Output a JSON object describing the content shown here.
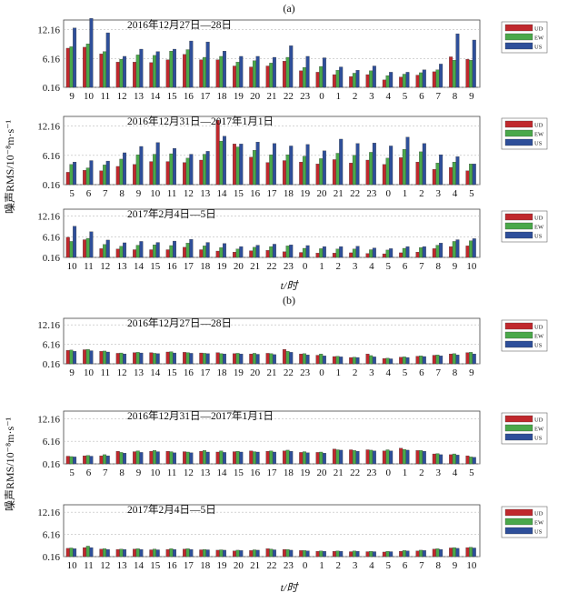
{
  "page": {
    "panel_labels": [
      "(a)",
      "(b)"
    ],
    "ylabel": "噪声RMS/10⁻⁸m·s⁻¹",
    "xlabel": "t/时",
    "legend": [
      "UD",
      "EW",
      "US"
    ],
    "colors": {
      "UD": "#c0282d",
      "EW": "#4aa84a",
      "US": "#2e4f9a"
    }
  },
  "chart_data": [
    {
      "type": "bar",
      "group": "a",
      "title": "2016年12月27日—28日",
      "categories": [
        "9",
        "10",
        "11",
        "12",
        "13",
        "14",
        "15",
        "16",
        "17",
        "18",
        "19",
        "20",
        "21",
        "22",
        "23",
        "0",
        "1",
        "2",
        "3",
        "4",
        "5",
        "6",
        "7",
        "8",
        "9"
      ],
      "series": [
        {
          "name": "UD",
          "values": [
            8.3,
            8.5,
            7.1,
            5.4,
            5.4,
            5.3,
            5.9,
            7.0,
            5.9,
            5.9,
            4.6,
            4.4,
            4.6,
            5.6,
            3.6,
            3.3,
            2.8,
            2.4,
            2.8,
            1.7,
            2.3,
            2.7,
            3.4,
            6.5,
            6.0
          ]
        },
        {
          "name": "EW",
          "values": [
            8.6,
            9.2,
            7.6,
            6.0,
            6.9,
            6.8,
            7.7,
            8.0,
            6.4,
            6.6,
            5.4,
            5.7,
            5.2,
            6.4,
            4.3,
            4.5,
            3.7,
            3.1,
            3.6,
            2.6,
            2.9,
            3.2,
            3.8,
            5.8,
            5.8
          ]
        },
        {
          "name": "US",
          "values": [
            12.5,
            14.5,
            11.5,
            6.6,
            8.1,
            7.6,
            8.1,
            9.8,
            9.6,
            7.7,
            6.6,
            6.6,
            6.4,
            8.8,
            6.6,
            6.3,
            4.4,
            3.7,
            4.6,
            3.3,
            3.3,
            3.8,
            5.0,
            11.3,
            10.0
          ]
        }
      ],
      "ylim": [
        0.16,
        14.16
      ],
      "yticks": [
        0.16,
        6.16,
        12.16
      ]
    },
    {
      "type": "bar",
      "group": "a",
      "title": "2016年12月31日—2017年1月1日",
      "categories": [
        "5",
        "6",
        "7",
        "8",
        "9",
        "10",
        "11",
        "12",
        "13",
        "14",
        "15",
        "16",
        "17",
        "18",
        "19",
        "20",
        "21",
        "22",
        "23",
        "0",
        "1",
        "2",
        "3",
        "4",
        "5"
      ],
      "series": [
        {
          "name": "UD",
          "values": [
            2.7,
            3.1,
            3.0,
            3.9,
            4.3,
            4.9,
            4.9,
            4.7,
            5.2,
            13.4,
            8.5,
            5.8,
            4.7,
            5.1,
            4.8,
            4.4,
            5.3,
            4.6,
            5.2,
            4.3,
            5.7,
            4.8,
            3.3,
            3.7,
            3.0
          ]
        },
        {
          "name": "EW",
          "values": [
            4.3,
            3.6,
            4.2,
            5.4,
            6.3,
            6.4,
            6.5,
            5.6,
            6.4,
            9.1,
            7.9,
            7.2,
            6.3,
            6.3,
            6.0,
            5.5,
            6.6,
            6.2,
            6.8,
            5.6,
            7.4,
            6.9,
            4.6,
            4.8,
            4.4
          ]
        },
        {
          "name": "US",
          "values": [
            4.8,
            5.1,
            5.0,
            6.7,
            8.0,
            8.8,
            7.6,
            6.4,
            7.0,
            10.1,
            8.5,
            8.9,
            8.6,
            8.1,
            8.4,
            7.1,
            9.5,
            8.6,
            8.7,
            8.1,
            9.9,
            8.6,
            6.3,
            5.9,
            4.4
          ]
        }
      ],
      "ylim": [
        0.16,
        14.16
      ],
      "yticks": [
        0.16,
        6.16,
        12.16
      ]
    },
    {
      "type": "bar",
      "group": "a",
      "title": "2017年2月4日—5日",
      "categories": [
        "10",
        "11",
        "12",
        "13",
        "14",
        "15",
        "16",
        "17",
        "18",
        "19",
        "20",
        "21",
        "22",
        "23",
        "0",
        "1",
        "2",
        "3",
        "4",
        "5",
        "6",
        "7",
        "8",
        "9",
        "10"
      ],
      "series": [
        {
          "name": "UD",
          "values": [
            6.0,
            5.3,
            2.7,
            2.6,
            2.4,
            2.4,
            2.4,
            3.1,
            2.4,
            2.0,
            1.7,
            2.1,
            2.2,
            1.8,
            1.6,
            1.4,
            1.4,
            1.5,
            1.3,
            1.2,
            1.5,
            1.7,
            2.7,
            3.3,
            3.5
          ]
        },
        {
          "name": "EW",
          "values": [
            4.8,
            5.7,
            3.9,
            3.4,
            3.7,
            3.8,
            3.6,
            4.3,
            3.5,
            3.0,
            2.6,
            3.1,
            3.3,
            3.5,
            2.8,
            2.7,
            2.6,
            2.6,
            2.4,
            2.3,
            2.8,
            3.0,
            3.7,
            4.8,
            5.0
          ]
        },
        {
          "name": "US",
          "values": [
            9.2,
            7.6,
            5.2,
            4.4,
            4.8,
            4.5,
            4.9,
            5.4,
            4.5,
            4.2,
            3.3,
            3.7,
            4.0,
            3.8,
            3.6,
            3.3,
            3.3,
            3.4,
            2.9,
            2.7,
            3.3,
            3.3,
            4.3,
            5.3,
            5.6
          ]
        }
      ],
      "ylim": [
        0.16,
        14.16
      ],
      "yticks": [
        0.16,
        6.16,
        12.16
      ]
    },
    {
      "type": "bar",
      "group": "b",
      "title": "2016年12月27日—28日",
      "categories": [
        "9",
        "10",
        "11",
        "12",
        "13",
        "14",
        "15",
        "16",
        "17",
        "18",
        "19",
        "20",
        "21",
        "22",
        "23",
        "0",
        "1",
        "2",
        "3",
        "4",
        "5",
        "6",
        "7",
        "8",
        "9"
      ],
      "series": [
        {
          "name": "UD",
          "values": [
            4.3,
            4.5,
            4.0,
            3.4,
            3.6,
            3.6,
            3.8,
            3.7,
            3.5,
            3.6,
            3.3,
            3.2,
            3.4,
            4.6,
            3.2,
            2.8,
            2.4,
            2.1,
            3.2,
            1.8,
            2.2,
            2.5,
            2.8,
            3.2,
            3.6
          ]
        },
        {
          "name": "EW",
          "values": [
            4.4,
            4.6,
            4.1,
            3.5,
            3.7,
            3.4,
            3.9,
            3.6,
            3.4,
            3.3,
            3.4,
            3.4,
            3.3,
            4.0,
            3.3,
            3.2,
            2.5,
            2.2,
            2.7,
            1.9,
            2.3,
            2.6,
            2.9,
            3.3,
            3.7
          ]
        },
        {
          "name": "US",
          "values": [
            4.0,
            4.2,
            3.8,
            3.2,
            3.5,
            3.3,
            3.5,
            3.4,
            3.3,
            3.2,
            3.2,
            3.1,
            3.0,
            3.7,
            2.9,
            2.6,
            2.3,
            2.1,
            2.3,
            1.7,
            2.1,
            2.4,
            2.6,
            2.9,
            3.2
          ]
        }
      ],
      "ylim": [
        0.16,
        14.16
      ],
      "yticks": [
        0.16,
        6.16,
        12.16
      ]
    },
    {
      "type": "bar",
      "group": "b",
      "title": "2016年12月31日—2017年1月1日",
      "categories": [
        "5",
        "6",
        "7",
        "8",
        "9",
        "10",
        "11",
        "12",
        "13",
        "14",
        "15",
        "16",
        "17",
        "18",
        "19",
        "20",
        "21",
        "22",
        "23",
        "0",
        "1",
        "2",
        "3",
        "4",
        "5"
      ],
      "series": [
        {
          "name": "UD",
          "values": [
            2.2,
            2.3,
            2.3,
            3.5,
            3.4,
            3.5,
            3.5,
            3.4,
            3.5,
            3.3,
            3.4,
            3.6,
            3.5,
            3.6,
            3.2,
            3.2,
            4.1,
            3.9,
            3.9,
            3.6,
            4.3,
            3.7,
            2.8,
            2.6,
            2.3
          ]
        },
        {
          "name": "EW",
          "values": [
            2.1,
            2.4,
            2.6,
            3.2,
            3.6,
            3.7,
            3.4,
            3.3,
            3.7,
            3.6,
            3.5,
            3.4,
            3.6,
            3.8,
            3.4,
            3.3,
            3.9,
            3.7,
            3.8,
            3.9,
            4.0,
            3.7,
            2.9,
            2.8,
            2.0
          ]
        },
        {
          "name": "US",
          "values": [
            2.0,
            2.2,
            2.3,
            3.0,
            3.2,
            3.4,
            3.1,
            3.1,
            3.3,
            3.2,
            3.3,
            3.3,
            3.3,
            3.5,
            3.1,
            3.0,
            3.8,
            3.5,
            3.6,
            3.6,
            3.8,
            3.5,
            2.6,
            2.5,
            1.9
          ]
        }
      ],
      "ylim": [
        0.16,
        14.16
      ],
      "yticks": [
        0.16,
        6.16,
        12.16
      ]
    },
    {
      "type": "bar",
      "group": "b",
      "title": "2017年2月4日—5日",
      "categories": [
        "10",
        "11",
        "12",
        "13",
        "14",
        "15",
        "16",
        "17",
        "18",
        "19",
        "20",
        "21",
        "22",
        "23",
        "0",
        "1",
        "2",
        "3",
        "4",
        "5",
        "6",
        "7",
        "8",
        "9",
        "10"
      ],
      "series": [
        {
          "name": "UD",
          "values": [
            2.4,
            2.6,
            2.2,
            2.1,
            2.2,
            2.0,
            2.1,
            2.2,
            2.0,
            1.9,
            1.7,
            1.8,
            2.3,
            2.1,
            1.8,
            1.6,
            1.6,
            1.5,
            1.5,
            1.4,
            1.6,
            1.7,
            2.2,
            2.5,
            2.6
          ]
        },
        {
          "name": "EW",
          "values": [
            2.5,
            3.0,
            2.3,
            2.2,
            2.3,
            2.2,
            2.3,
            2.3,
            2.1,
            2.0,
            1.9,
            2.0,
            2.2,
            2.1,
            1.8,
            1.7,
            1.7,
            1.7,
            1.6,
            1.6,
            1.8,
            1.9,
            2.3,
            2.6,
            2.7
          ]
        },
        {
          "name": "US",
          "values": [
            2.3,
            2.6,
            2.1,
            2.1,
            2.1,
            2.0,
            2.1,
            2.1,
            2.0,
            1.9,
            1.8,
            1.9,
            2.0,
            1.9,
            1.7,
            1.6,
            1.6,
            1.6,
            1.5,
            1.5,
            1.7,
            1.8,
            2.1,
            2.4,
            2.5
          ]
        }
      ],
      "ylim": [
        0.16,
        14.16
      ],
      "yticks": [
        0.16,
        6.16,
        12.16
      ]
    }
  ]
}
